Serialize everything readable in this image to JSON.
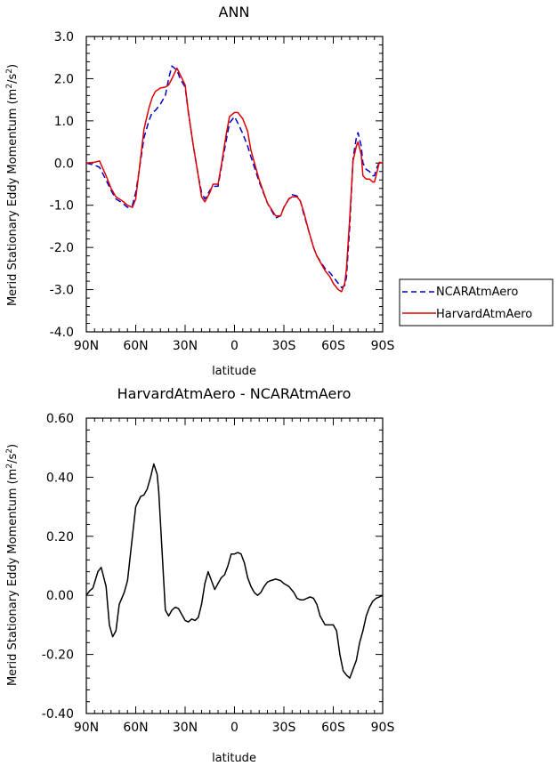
{
  "chart_data": [
    {
      "type": "line",
      "title": "ANN",
      "xlabel": "latitude",
      "ylabel": "Merid Stationary Eddy Momentum (m²/s²)",
      "ylabel_main": "Merid Stationary Eddy Momentum (m",
      "ylabel_mid": "/s",
      "ylabel_end": ")",
      "ylabel_sup": "2",
      "xlim": [
        90,
        -90
      ],
      "ylim": [
        -4.0,
        3.0
      ],
      "xticks": [
        90,
        60,
        30,
        0,
        -30,
        -60,
        -90
      ],
      "xtick_labels": [
        "90N",
        "60N",
        "30N",
        "0",
        "30S",
        "60S",
        "90S"
      ],
      "yticks": [
        -4.0,
        -3.0,
        -2.0,
        -1.0,
        0.0,
        1.0,
        2.0,
        3.0
      ],
      "ytick_labels": [
        "-4.0",
        "-3.0",
        "-2.0",
        "-1.0",
        "0.0",
        "1.0",
        "2.0",
        "3.0"
      ],
      "legend_position": "outside-right",
      "series": [
        {
          "name": "NCARAtmAero",
          "color": "#0000cc",
          "style": "dashed",
          "x": [
            90,
            85,
            82,
            78,
            75,
            72,
            68,
            65,
            62,
            60,
            58,
            55,
            52,
            50,
            48,
            45,
            42,
            40,
            38,
            35,
            33,
            30,
            28,
            25,
            22,
            20,
            18,
            15,
            13,
            10,
            8,
            5,
            3,
            0,
            -2,
            -5,
            -8,
            -10,
            -15,
            -20,
            -25,
            -28,
            -30,
            -33,
            -35,
            -38,
            -40,
            -42,
            -45,
            -48,
            -50,
            -55,
            -58,
            -60,
            -63,
            -65,
            -67,
            -68,
            -70,
            -72,
            -74,
            -75,
            -77,
            -78,
            -80,
            -82,
            -84,
            -85,
            -86,
            -88,
            -90
          ],
          "values": [
            0.0,
            -0.05,
            -0.1,
            -0.4,
            -0.65,
            -0.85,
            -0.95,
            -1.05,
            -1.0,
            -0.7,
            -0.2,
            0.6,
            1.0,
            1.2,
            1.25,
            1.4,
            1.6,
            2.0,
            2.3,
            2.2,
            2.0,
            1.8,
            1.2,
            0.4,
            -0.3,
            -0.7,
            -0.85,
            -0.65,
            -0.55,
            -0.55,
            -0.1,
            0.55,
            0.95,
            1.1,
            0.95,
            0.7,
            0.4,
            0.15,
            -0.45,
            -0.95,
            -1.3,
            -1.25,
            -1.05,
            -0.85,
            -0.75,
            -0.78,
            -0.9,
            -1.2,
            -1.6,
            -2.0,
            -2.2,
            -2.5,
            -2.6,
            -2.7,
            -2.85,
            -2.95,
            -2.9,
            -2.7,
            -1.5,
            0.1,
            0.6,
            0.72,
            0.4,
            0.0,
            -0.15,
            -0.2,
            -0.3,
            -0.3,
            -0.15,
            0.02,
            0.0
          ]
        },
        {
          "name": "HarvardAtmAero",
          "color": "#dd0000",
          "style": "solid",
          "x": [
            90,
            85,
            82,
            78,
            75,
            72,
            68,
            65,
            62,
            60,
            58,
            55,
            52,
            50,
            48,
            45,
            42,
            40,
            38,
            35,
            33,
            30,
            28,
            25,
            22,
            20,
            18,
            15,
            13,
            10,
            8,
            5,
            3,
            0,
            -2,
            -5,
            -8,
            -10,
            -15,
            -20,
            -25,
            -28,
            -30,
            -33,
            -35,
            -38,
            -40,
            -42,
            -45,
            -48,
            -50,
            -55,
            -58,
            -60,
            -63,
            -65,
            -67,
            -68,
            -70,
            -72,
            -74,
            -75,
            -77,
            -78,
            -80,
            -82,
            -84,
            -85,
            -86,
            -88,
            -90
          ],
          "values": [
            0.0,
            0.02,
            0.05,
            -0.3,
            -0.6,
            -0.8,
            -0.9,
            -1.0,
            -1.05,
            -0.85,
            -0.2,
            0.8,
            1.3,
            1.55,
            1.7,
            1.78,
            1.8,
            1.85,
            2.0,
            2.25,
            2.1,
            1.85,
            1.2,
            0.4,
            -0.3,
            -0.8,
            -0.92,
            -0.7,
            -0.5,
            -0.5,
            -0.05,
            0.7,
            1.1,
            1.2,
            1.2,
            1.05,
            0.75,
            0.3,
            -0.4,
            -0.95,
            -1.25,
            -1.25,
            -1.05,
            -0.85,
            -0.8,
            -0.8,
            -0.9,
            -1.15,
            -1.6,
            -2.0,
            -2.2,
            -2.55,
            -2.7,
            -2.85,
            -3.0,
            -3.05,
            -2.85,
            -2.5,
            -1.3,
            0.05,
            0.4,
            0.5,
            0.2,
            -0.3,
            -0.38,
            -0.38,
            -0.45,
            -0.45,
            -0.3,
            0.02,
            0.0
          ]
        }
      ]
    },
    {
      "type": "line",
      "title": "HarvardAtmAero - NCARAtmAero",
      "xlabel": "latitude",
      "ylabel": "Merid Stationary Eddy Momentum (m²/s²)",
      "ylabel_main": "Merid Stationary Eddy Momentum (m",
      "ylabel_mid": "/s",
      "ylabel_end": ")",
      "ylabel_sup": "2",
      "xlim": [
        90,
        -90
      ],
      "ylim": [
        -0.4,
        0.6
      ],
      "xticks": [
        90,
        60,
        30,
        0,
        -30,
        -60,
        -90
      ],
      "xtick_labels": [
        "90N",
        "60N",
        "30N",
        "0",
        "30S",
        "60S",
        "90S"
      ],
      "yticks": [
        -0.4,
        -0.2,
        0.0,
        0.2,
        0.4,
        0.6
      ],
      "ytick_labels": [
        "-0.40",
        "-0.20",
        "0.00",
        "0.20",
        "0.40",
        "0.60"
      ],
      "series": [
        {
          "color": "#000000",
          "style": "solid",
          "x": [
            90,
            88,
            86,
            83,
            81,
            78,
            76,
            74,
            72,
            70,
            67,
            65,
            62,
            60,
            57,
            55,
            53,
            51,
            49,
            47,
            46,
            44,
            42,
            40,
            38,
            36,
            34,
            32,
            30,
            28,
            26,
            24,
            22,
            20,
            18,
            16,
            14,
            12,
            10,
            8,
            6,
            4,
            2,
            0,
            -2,
            -4,
            -6,
            -8,
            -10,
            -12,
            -14,
            -16,
            -18,
            -20,
            -22,
            -25,
            -28,
            -30,
            -33,
            -36,
            -38,
            -40,
            -42,
            -44,
            -46,
            -48,
            -50,
            -52,
            -55,
            -58,
            -60,
            -62,
            -64,
            -66,
            -68,
            -70,
            -72,
            -74,
            -76,
            -78,
            -80,
            -82,
            -84,
            -86,
            -88,
            -90
          ],
          "values": [
            0.0,
            0.015,
            0.025,
            0.08,
            0.095,
            0.03,
            -0.1,
            -0.14,
            -0.12,
            -0.03,
            0.01,
            0.05,
            0.2,
            0.3,
            0.335,
            0.34,
            0.36,
            0.4,
            0.445,
            0.41,
            0.35,
            0.15,
            -0.05,
            -0.07,
            -0.05,
            -0.04,
            -0.045,
            -0.065,
            -0.085,
            -0.09,
            -0.08,
            -0.085,
            -0.075,
            -0.03,
            0.04,
            0.08,
            0.05,
            0.02,
            0.04,
            0.06,
            0.07,
            0.1,
            0.14,
            0.14,
            0.145,
            0.14,
            0.11,
            0.06,
            0.03,
            0.01,
            0.0,
            0.01,
            0.03,
            0.045,
            0.05,
            0.055,
            0.05,
            0.04,
            0.03,
            0.01,
            -0.01,
            -0.015,
            -0.015,
            -0.01,
            -0.005,
            -0.01,
            -0.03,
            -0.07,
            -0.1,
            -0.1,
            -0.1,
            -0.12,
            -0.2,
            -0.255,
            -0.27,
            -0.28,
            -0.25,
            -0.22,
            -0.16,
            -0.12,
            -0.07,
            -0.04,
            -0.02,
            -0.01,
            -0.005,
            0.0
          ]
        }
      ]
    }
  ]
}
